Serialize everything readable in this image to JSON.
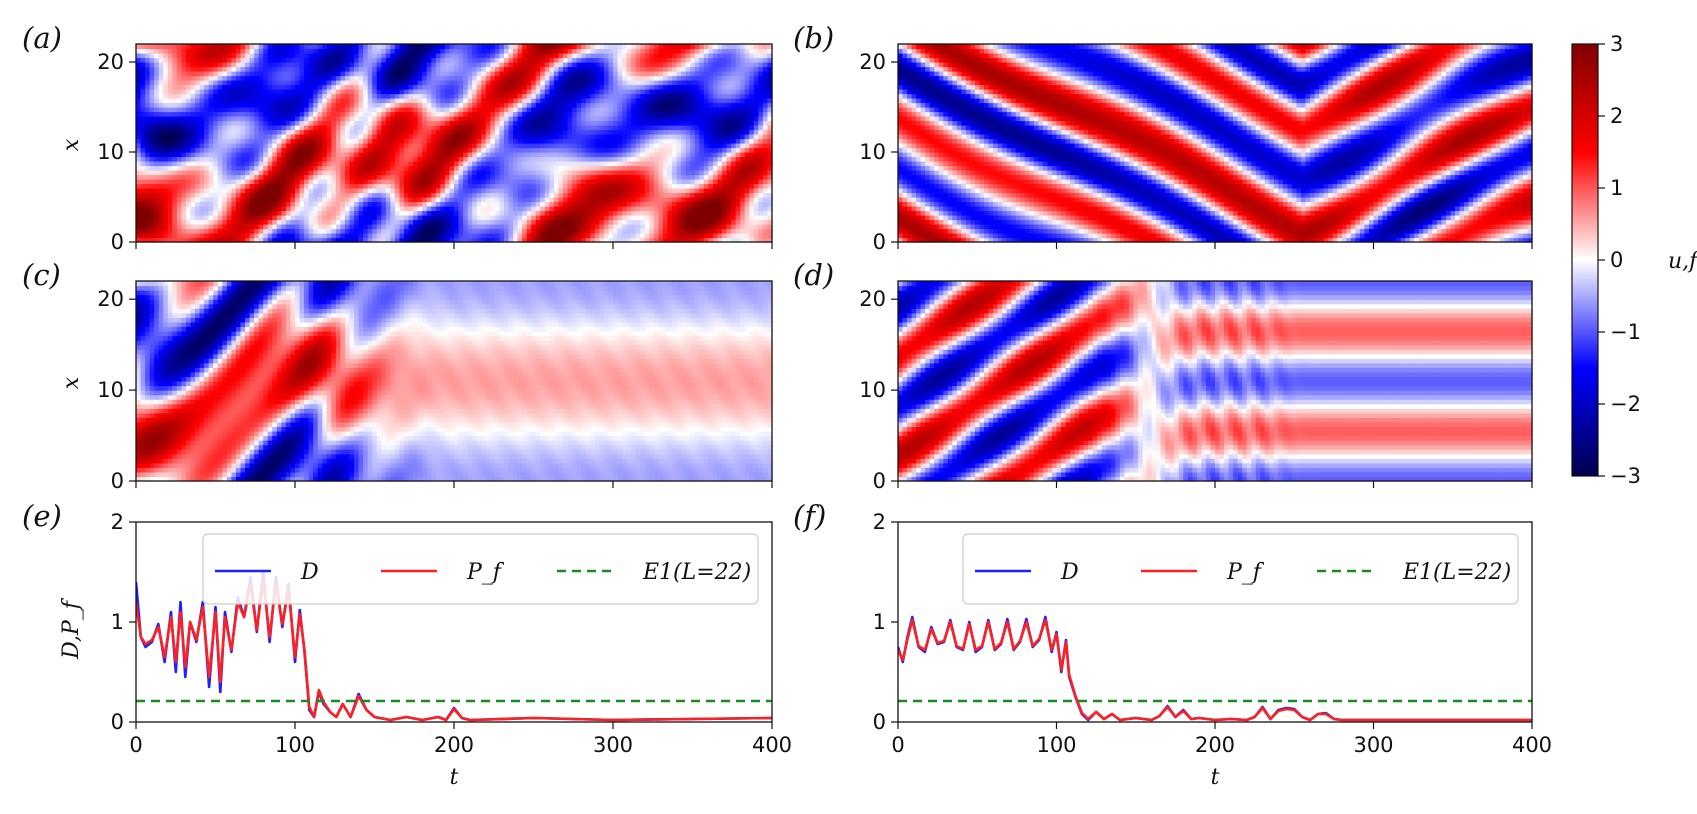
{
  "chart_data": [
    {
      "panel": "(a)",
      "type": "heatmap",
      "pattern": "chaotic",
      "ylabel": "x",
      "xlim": [
        0,
        400
      ],
      "ylim": [
        0,
        22
      ],
      "xticks": [
        0,
        100,
        200,
        300,
        400
      ],
      "yticks": [
        0,
        10,
        20
      ],
      "ytick_labels": [
        "0",
        "10",
        "20"
      ],
      "show_x_tick_labels": false
    },
    {
      "panel": "(b)",
      "type": "heatmap",
      "pattern": "traveling",
      "ylabel": "",
      "xlim": [
        0,
        400
      ],
      "ylim": [
        0,
        22
      ],
      "xticks": [
        0,
        100,
        200,
        300,
        400
      ],
      "yticks": [
        0,
        10,
        20
      ],
      "ytick_labels": [
        "0",
        "10",
        "20"
      ],
      "show_x_tick_labels": false
    },
    {
      "panel": "(c)",
      "type": "heatmap",
      "pattern": "relax_c",
      "ylabel": "x",
      "xlim": [
        0,
        400
      ],
      "ylim": [
        0,
        22
      ],
      "xticks": [
        0,
        100,
        200,
        300,
        400
      ],
      "yticks": [
        0,
        10,
        20
      ],
      "ytick_labels": [
        "0",
        "10",
        "20"
      ],
      "show_x_tick_labels": false
    },
    {
      "panel": "(d)",
      "type": "heatmap",
      "pattern": "relax_d",
      "ylabel": "",
      "xlim": [
        0,
        400
      ],
      "ylim": [
        0,
        22
      ],
      "xticks": [
        0,
        100,
        200,
        300,
        400
      ],
      "yticks": [
        0,
        10,
        20
      ],
      "ytick_labels": [
        "0",
        "10",
        "20"
      ],
      "show_x_tick_labels": false
    },
    {
      "panel": "(e)",
      "type": "line",
      "xlabel": "t",
      "ylabel": "D,P_f",
      "xlim": [
        0,
        400
      ],
      "ylim": [
        0,
        2
      ],
      "xticks": [
        0,
        100,
        200,
        300,
        400
      ],
      "yticks": [
        0,
        1,
        2
      ],
      "series": [
        {
          "name": "D",
          "color": "#1f1fff",
          "x": [
            0,
            3,
            6,
            10,
            14,
            18,
            22,
            25,
            28,
            31,
            34,
            38,
            42,
            46,
            50,
            53,
            56,
            60,
            64,
            68,
            72,
            76,
            80,
            84,
            88,
            92,
            96,
            100,
            103,
            106,
            109,
            112,
            115,
            118,
            122,
            126,
            130,
            135,
            140,
            145,
            150,
            160,
            170,
            180,
            190,
            195,
            200,
            205,
            210,
            250,
            300,
            350,
            400
          ],
          "y": [
            1.4,
            0.85,
            0.75,
            0.8,
            0.98,
            0.6,
            1.1,
            0.5,
            1.2,
            0.45,
            1.0,
            0.8,
            1.2,
            0.35,
            1.15,
            0.3,
            1.1,
            0.7,
            1.25,
            1.05,
            1.45,
            0.9,
            1.5,
            0.8,
            1.45,
            0.95,
            1.38,
            0.6,
            1.12,
            0.7,
            0.12,
            0.05,
            0.3,
            0.18,
            0.1,
            0.05,
            0.18,
            0.05,
            0.28,
            0.12,
            0.05,
            0.02,
            0.05,
            0.02,
            0.05,
            0.02,
            0.14,
            0.04,
            0.02,
            0.04,
            0.02,
            0.03,
            0.04
          ]
        },
        {
          "name": "P_f",
          "color": "#ff2020",
          "x": [
            0,
            3,
            6,
            10,
            14,
            18,
            22,
            25,
            28,
            31,
            34,
            38,
            42,
            46,
            50,
            53,
            56,
            60,
            64,
            68,
            72,
            76,
            80,
            84,
            88,
            92,
            96,
            100,
            103,
            106,
            109,
            112,
            115,
            118,
            122,
            126,
            130,
            135,
            140,
            145,
            150,
            160,
            170,
            180,
            190,
            195,
            200,
            205,
            210,
            250,
            300,
            350,
            400
          ],
          "y": [
            1.2,
            0.85,
            0.78,
            0.82,
            0.95,
            0.65,
            1.05,
            0.6,
            1.1,
            0.55,
            1.0,
            0.82,
            1.15,
            0.45,
            1.1,
            0.4,
            1.05,
            0.72,
            1.2,
            1.05,
            1.38,
            0.92,
            1.42,
            0.85,
            1.38,
            0.98,
            1.32,
            0.65,
            1.08,
            0.72,
            0.15,
            0.05,
            0.32,
            0.2,
            0.1,
            0.05,
            0.18,
            0.05,
            0.26,
            0.12,
            0.05,
            0.02,
            0.05,
            0.02,
            0.05,
            0.02,
            0.13,
            0.04,
            0.02,
            0.04,
            0.02,
            0.03,
            0.04
          ]
        },
        {
          "name": "E1(L=22)",
          "color": "#1a8c1a",
          "style": "dashed",
          "x": [
            0,
            400
          ],
          "y": [
            0.21,
            0.21
          ]
        }
      ],
      "legend": [
        {
          "label": "D",
          "color": "#1f1fff",
          "style": "solid"
        },
        {
          "label": "P_f",
          "color": "#ff2020",
          "style": "solid"
        },
        {
          "label": "E1(L=22)",
          "color": "#1a8c1a",
          "style": "dashed"
        }
      ],
      "legend_location": "upper-right"
    },
    {
      "panel": "(f)",
      "type": "line",
      "xlabel": "t",
      "ylabel": "",
      "xlim": [
        0,
        400
      ],
      "ylim": [
        0,
        2
      ],
      "xticks": [
        0,
        100,
        200,
        300,
        400
      ],
      "yticks": [
        0,
        1,
        2
      ],
      "series": [
        {
          "name": "D",
          "color": "#1f1fff",
          "x": [
            0,
            3,
            6,
            9,
            13,
            17,
            21,
            25,
            29,
            33,
            37,
            41,
            45,
            49,
            53,
            57,
            61,
            65,
            69,
            73,
            77,
            81,
            85,
            89,
            93,
            97,
            100,
            103,
            106,
            108,
            112,
            116,
            120,
            125,
            130,
            135,
            140,
            150,
            160,
            165,
            170,
            175,
            180,
            185,
            190,
            200,
            210,
            220,
            225,
            230,
            235,
            240,
            245,
            250,
            255,
            260,
            265,
            270,
            275,
            280,
            300,
            350,
            400
          ],
          "y": [
            0.75,
            0.6,
            0.85,
            1.05,
            0.75,
            0.7,
            0.95,
            0.78,
            0.8,
            1.02,
            0.75,
            0.72,
            1.0,
            0.7,
            0.75,
            1.02,
            0.72,
            0.78,
            1.03,
            0.72,
            0.8,
            1.03,
            0.75,
            0.82,
            1.05,
            0.7,
            0.9,
            0.5,
            0.82,
            0.45,
            0.25,
            0.08,
            0.02,
            0.1,
            0.03,
            0.08,
            0.02,
            0.04,
            0.02,
            0.06,
            0.16,
            0.05,
            0.12,
            0.03,
            0.04,
            0.02,
            0.03,
            0.02,
            0.05,
            0.15,
            0.03,
            0.12,
            0.14,
            0.13,
            0.05,
            0.02,
            0.08,
            0.09,
            0.03,
            0.02,
            0.02,
            0.02,
            0.02
          ]
        },
        {
          "name": "P_f",
          "color": "#ff2020",
          "x": [
            0,
            3,
            6,
            9,
            13,
            17,
            21,
            25,
            29,
            33,
            37,
            41,
            45,
            49,
            53,
            57,
            61,
            65,
            69,
            73,
            77,
            81,
            85,
            89,
            93,
            97,
            100,
            103,
            106,
            108,
            112,
            116,
            120,
            125,
            130,
            135,
            140,
            150,
            160,
            165,
            170,
            175,
            180,
            185,
            190,
            200,
            210,
            220,
            225,
            230,
            235,
            240,
            245,
            250,
            255,
            260,
            265,
            270,
            275,
            280,
            300,
            350,
            400
          ],
          "y": [
            0.72,
            0.62,
            0.83,
            1.02,
            0.76,
            0.72,
            0.93,
            0.79,
            0.81,
            1.0,
            0.76,
            0.73,
            0.98,
            0.72,
            0.76,
            1.0,
            0.73,
            0.79,
            1.0,
            0.73,
            0.81,
            1.0,
            0.76,
            0.83,
            1.02,
            0.72,
            0.88,
            0.52,
            0.8,
            0.47,
            0.26,
            0.09,
            0.03,
            0.1,
            0.03,
            0.08,
            0.02,
            0.04,
            0.02,
            0.06,
            0.15,
            0.05,
            0.11,
            0.03,
            0.04,
            0.02,
            0.03,
            0.02,
            0.05,
            0.14,
            0.03,
            0.11,
            0.13,
            0.12,
            0.05,
            0.02,
            0.08,
            0.08,
            0.03,
            0.02,
            0.02,
            0.02,
            0.02
          ]
        },
        {
          "name": "E1(L=22)",
          "color": "#1a8c1a",
          "style": "dashed",
          "x": [
            0,
            400
          ],
          "y": [
            0.21,
            0.21
          ]
        }
      ],
      "legend": [
        {
          "label": "D",
          "color": "#1f1fff",
          "style": "solid"
        },
        {
          "label": "P_f",
          "color": "#ff2020",
          "style": "solid"
        },
        {
          "label": "E1(L=22)",
          "color": "#1a8c1a",
          "style": "dashed"
        }
      ],
      "legend_location": "upper-right"
    }
  ],
  "colorbar": {
    "label": "u,f",
    "vmin": -3,
    "vmax": 3,
    "ticks": [
      3,
      2,
      1,
      0,
      -1,
      -2,
      -3
    ],
    "tick_labels": [
      "3",
      "2",
      "1",
      "0",
      "−1",
      "−2",
      "−3"
    ],
    "stops": [
      "#00004c",
      "#0000ff",
      "#ffffff",
      "#ff0000",
      "#7f0000"
    ]
  },
  "panel_labels": [
    "(a)",
    "(b)",
    "(c)",
    "(d)",
    "(e)",
    "(f)"
  ]
}
